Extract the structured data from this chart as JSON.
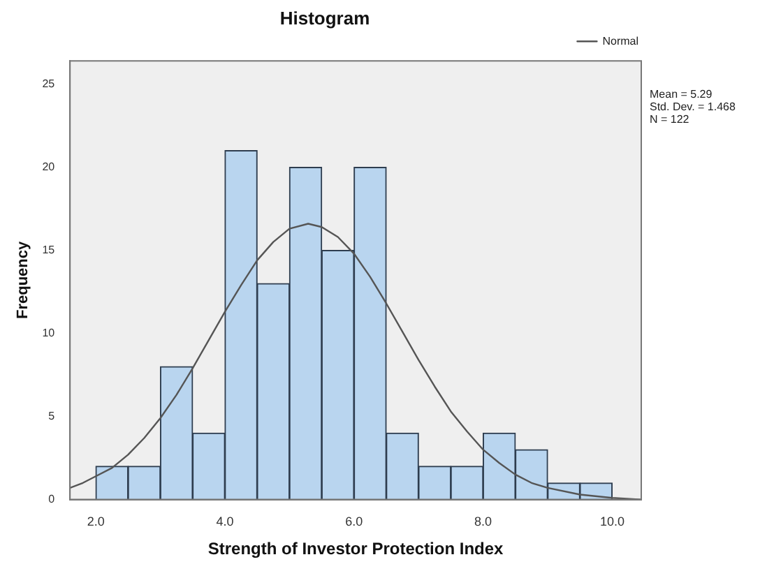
{
  "chart_data": {
    "type": "histogram",
    "title": "Histogram",
    "xlabel": "Strength of Investor Protection Index",
    "ylabel": "Frequency",
    "bins": [
      2.0,
      2.5,
      3.0,
      3.5,
      4.0,
      4.5,
      5.0,
      5.5,
      6.0,
      6.5,
      7.0,
      7.5,
      8.0,
      8.5,
      9.0,
      9.5,
      10.0
    ],
    "values": [
      2,
      2,
      8,
      4,
      21,
      13,
      20,
      15,
      20,
      4,
      2,
      2,
      4,
      3,
      1,
      1
    ],
    "color": "#b9d5ef",
    "xlim": [
      1.6,
      10.45
    ],
    "xticks": [
      {
        "value": 2,
        "label": "2.0"
      },
      {
        "value": 4,
        "label": "4.0"
      },
      {
        "value": 6,
        "label": "6.0"
      },
      {
        "value": 8,
        "label": "8.0"
      },
      {
        "value": 10,
        "label": "10.0"
      }
    ],
    "ylim": [
      0,
      26.4
    ],
    "yticks": [
      0,
      5,
      10,
      15,
      20,
      25
    ],
    "grid": false,
    "legend": "top right",
    "marker": "none",
    "line_style": "solid",
    "series": [
      {
        "name": "Normal",
        "type": "line",
        "color": "#555555",
        "x": [
          1.6,
          1.8,
          2.0,
          2.25,
          2.5,
          2.75,
          3.0,
          3.25,
          3.5,
          3.75,
          4.0,
          4.25,
          4.5,
          4.75,
          5.0,
          5.29,
          5.5,
          5.75,
          6.0,
          6.25,
          6.5,
          6.75,
          7.0,
          7.25,
          7.5,
          7.75,
          8.0,
          8.25,
          8.5,
          8.75,
          9.0,
          9.5,
          10.0,
          10.45
        ],
        "values": [
          0.7,
          1.0,
          1.4,
          1.9,
          2.7,
          3.7,
          4.9,
          6.3,
          7.9,
          9.6,
          11.3,
          12.9,
          14.4,
          15.5,
          16.3,
          16.6,
          16.4,
          15.8,
          14.8,
          13.4,
          11.8,
          10.1,
          8.4,
          6.8,
          5.3,
          4.1,
          3.0,
          2.2,
          1.5,
          1.0,
          0.7,
          0.3,
          0.1,
          0.0
        ]
      }
    ],
    "annotations": [
      "Mean = 5.29",
      "Std. Dev. = 1.468",
      "N = 122"
    ]
  }
}
